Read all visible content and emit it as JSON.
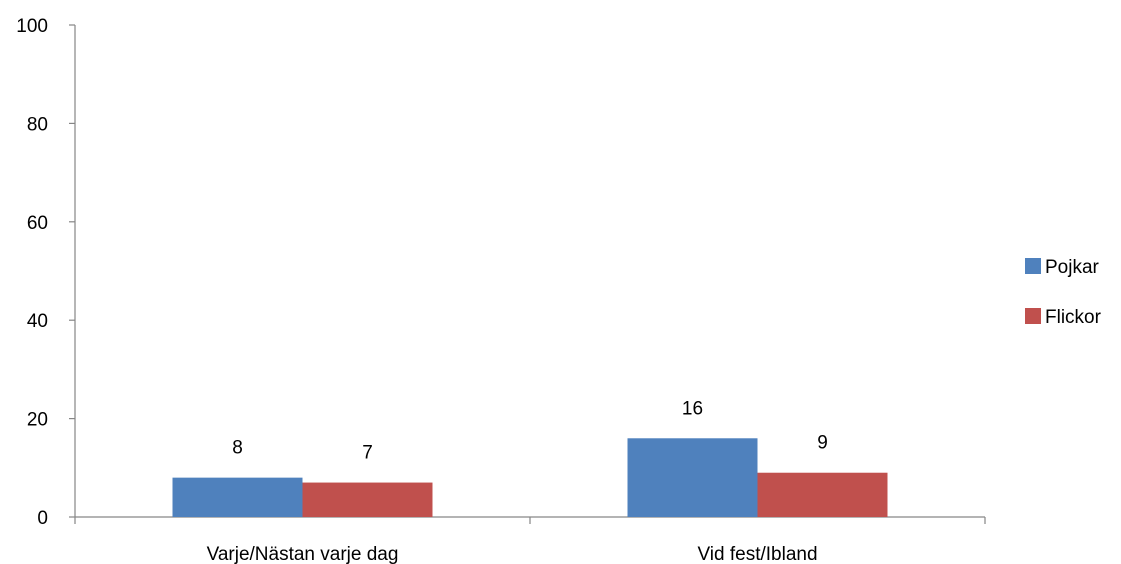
{
  "chart_data": {
    "type": "bar",
    "title": "",
    "xlabel": "",
    "ylabel": "",
    "categories": [
      "Varje/Nästan varje dag",
      "Vid fest/Ibland"
    ],
    "series": [
      {
        "name": "Pojkar",
        "values": [
          8,
          16
        ],
        "color": "#4F81BD"
      },
      {
        "name": "Flickor",
        "values": [
          7,
          9
        ],
        "color": "#C0504D"
      }
    ],
    "ylim": [
      0,
      100
    ],
    "yticks": [
      0,
      20,
      40,
      60,
      80,
      100
    ],
    "grid": false,
    "legend_position": "right",
    "data_labels": true
  }
}
